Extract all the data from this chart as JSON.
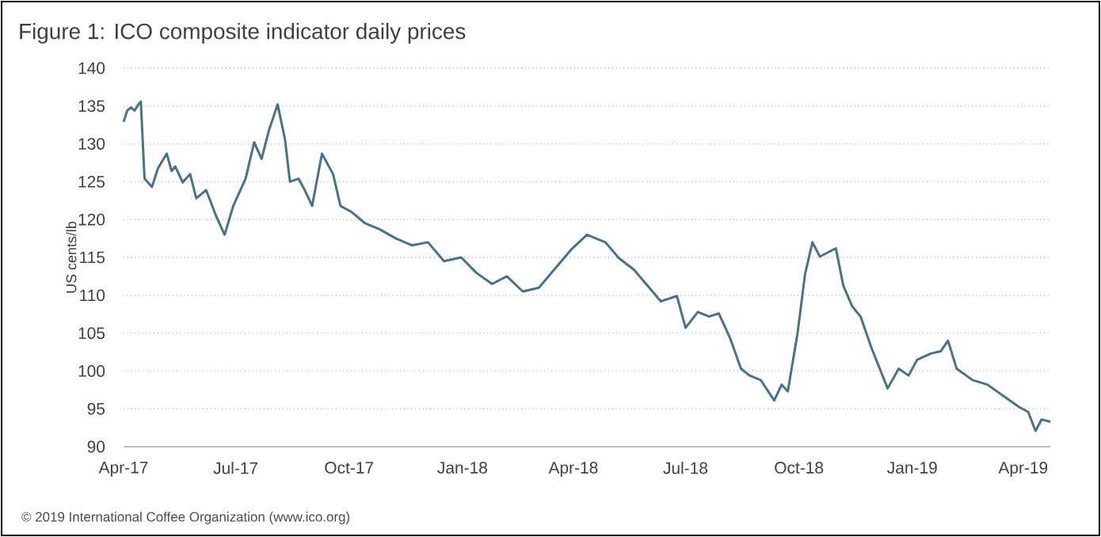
{
  "chart_data": {
    "type": "line",
    "title": "Figure 1: ICO composite indicator daily prices",
    "ylabel": "US cents/lb",
    "annotations": [
      "© 2019 International Coffee Organization (www.ico.org)"
    ],
    "x": [
      "2017-04-01",
      "2017-04-04",
      "2017-04-07",
      "2017-04-10",
      "2017-04-13",
      "2017-04-15",
      "2017-04-18",
      "2017-04-24",
      "2017-04-29",
      "2017-05-06",
      "2017-05-10",
      "2017-05-13",
      "2017-05-19",
      "2017-05-25",
      "2017-05-30",
      "2017-06-07",
      "2017-06-15",
      "2017-06-22",
      "2017-06-29",
      "2017-07-09",
      "2017-07-16",
      "2017-07-22",
      "2017-07-28",
      "2017-08-04",
      "2017-08-10",
      "2017-08-14",
      "2017-08-21",
      "2017-08-26",
      "2017-09-01",
      "2017-09-09",
      "2017-09-18",
      "2017-09-24",
      "2017-10-03",
      "2017-10-14",
      "2017-10-26",
      "2017-11-08",
      "2017-11-21",
      "2017-12-04",
      "2017-12-17",
      "2017-12-31",
      "2018-01-12",
      "2018-01-25",
      "2018-02-06",
      "2018-02-19",
      "2018-03-04",
      "2018-03-17",
      "2018-03-30",
      "2018-04-12",
      "2018-04-27",
      "2018-05-08",
      "2018-05-20",
      "2018-06-11",
      "2018-06-24",
      "2018-07-01",
      "2018-07-11",
      "2018-07-20",
      "2018-07-28",
      "2018-08-06",
      "2018-08-15",
      "2018-08-22",
      "2018-08-31",
      "2018-09-11",
      "2018-09-17",
      "2018-09-22",
      "2018-09-30",
      "2018-10-06",
      "2018-10-12",
      "2018-10-18",
      "2018-10-31",
      "2018-11-06",
      "2018-11-13",
      "2018-11-20",
      "2018-11-29",
      "2018-12-12",
      "2018-12-21",
      "2018-12-29",
      "2019-01-05",
      "2019-01-16",
      "2019-01-24",
      "2019-01-30",
      "2019-02-06",
      "2019-02-19",
      "2019-03-03",
      "2019-03-16",
      "2019-03-29",
      "2019-04-05",
      "2019-04-11",
      "2019-04-16",
      "2019-04-23"
    ],
    "series": [
      {
        "color": "#4a7285",
        "values": [
          132.9,
          134.4,
          134.8,
          134.4,
          135.2,
          135.6,
          125.4,
          124.3,
          126.8,
          128.7,
          126.4,
          127.0,
          124.9,
          126.0,
          122.8,
          123.9,
          120.5,
          118.0,
          121.8,
          125.4,
          130.2,
          128.0,
          131.8,
          135.2,
          130.6,
          125.0,
          125.4,
          123.9,
          121.8,
          128.7,
          126.0,
          121.8,
          121.0,
          119.5,
          118.7,
          117.5,
          116.6,
          117.0,
          114.5,
          115.0,
          113.0,
          111.5,
          112.5,
          110.5,
          111.0,
          113.5,
          116.0,
          118.0,
          117.0,
          114.9,
          113.4,
          109.2,
          109.9,
          105.7,
          107.8,
          107.2,
          107.6,
          104.4,
          100.3,
          99.4,
          98.8,
          96.1,
          98.2,
          97.3,
          105.1,
          112.8,
          117.0,
          115.1,
          116.2,
          111.3,
          108.6,
          107.2,
          103.0,
          97.7,
          100.3,
          99.4,
          101.5,
          102.3,
          102.6,
          104.0,
          100.3,
          98.8,
          98.2,
          96.7,
          95.2,
          94.6,
          92.1,
          93.6,
          93.3
        ]
      }
    ],
    "xlim": [
      "2017-04-01",
      "2019-04-23"
    ],
    "xticks": [
      {
        "value": "2017-04-01",
        "label": "Apr-17"
      },
      {
        "value": "2017-07-01",
        "label": "Jul-17"
      },
      {
        "value": "2017-10-01",
        "label": "Oct-17"
      },
      {
        "value": "2018-01-01",
        "label": "Jan-18"
      },
      {
        "value": "2018-04-01",
        "label": "Apr-18"
      },
      {
        "value": "2018-07-01",
        "label": "Jul-18"
      },
      {
        "value": "2018-10-01",
        "label": "Oct-18"
      },
      {
        "value": "2019-01-01",
        "label": "Jan-19"
      },
      {
        "value": "2019-04-01",
        "label": "Apr-19"
      }
    ],
    "ylim": [
      90,
      140
    ],
    "yticks": [
      90,
      95,
      100,
      105,
      110,
      115,
      120,
      125,
      130,
      135,
      140
    ],
    "grid": "y",
    "line_style": "solid"
  }
}
